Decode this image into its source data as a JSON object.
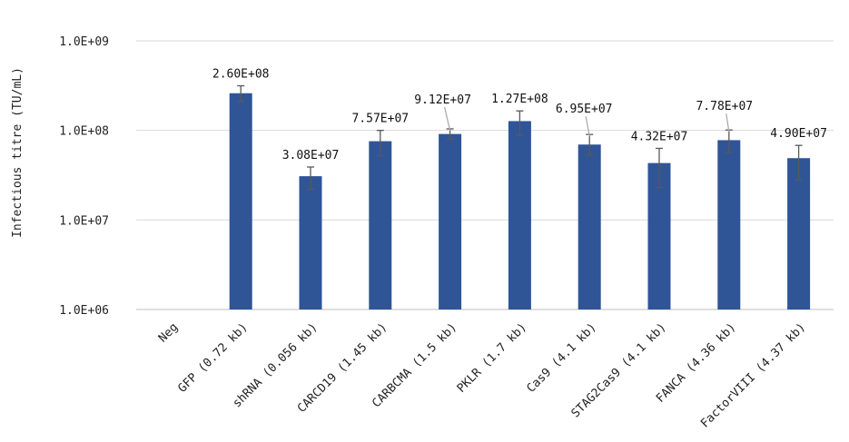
{
  "chart_data": {
    "type": "bar",
    "ylabel": "Infectious titre (TU/mL)",
    "xlabel": "",
    "yscale": "log",
    "ylim": [
      1000000,
      1000000000
    ],
    "yticks": [
      {
        "value": 1000000,
        "label": "1.0E+06"
      },
      {
        "value": 10000000,
        "label": "1.0E+07"
      },
      {
        "value": 100000000,
        "label": "1.0E+08"
      },
      {
        "value": 1000000000,
        "label": "1.0E+09"
      }
    ],
    "grid": true,
    "bar_color": "#2f5597",
    "categories": [
      "Neg",
      "GFP (0.72 kb)",
      "shRNA (0.056 kb)",
      "CARCD19 (1.45 kb)",
      "CARBCMA (1.5 kb)",
      "PKLR (1.7 kb)",
      "Cas9 (4.1 kb)",
      "STAG2Cas9 (4.1 kb)",
      "FANCA (4.36 kb)",
      "FactorVIII (4.37 kb)"
    ],
    "values": [
      null,
      260000000,
      30800000,
      75700000,
      91200000,
      127000000,
      69500000,
      43200000,
      77800000,
      49000000
    ],
    "error_low": [
      null,
      210000000,
      22000000,
      52000000,
      80000000,
      88000000,
      53000000,
      23000000,
      57000000,
      28000000
    ],
    "error_high": [
      null,
      315000000,
      39000000,
      100000000,
      104000000,
      165000000,
      90000000,
      63000000,
      101000000,
      68000000
    ],
    "data_labels": [
      "",
      "2.60E+08",
      "3.08E+07",
      "7.57E+07",
      "9.12E+07",
      "1.27E+08",
      "6.95E+07",
      "4.32E+07",
      "7.78E+07",
      "4.90E+07"
    ]
  }
}
